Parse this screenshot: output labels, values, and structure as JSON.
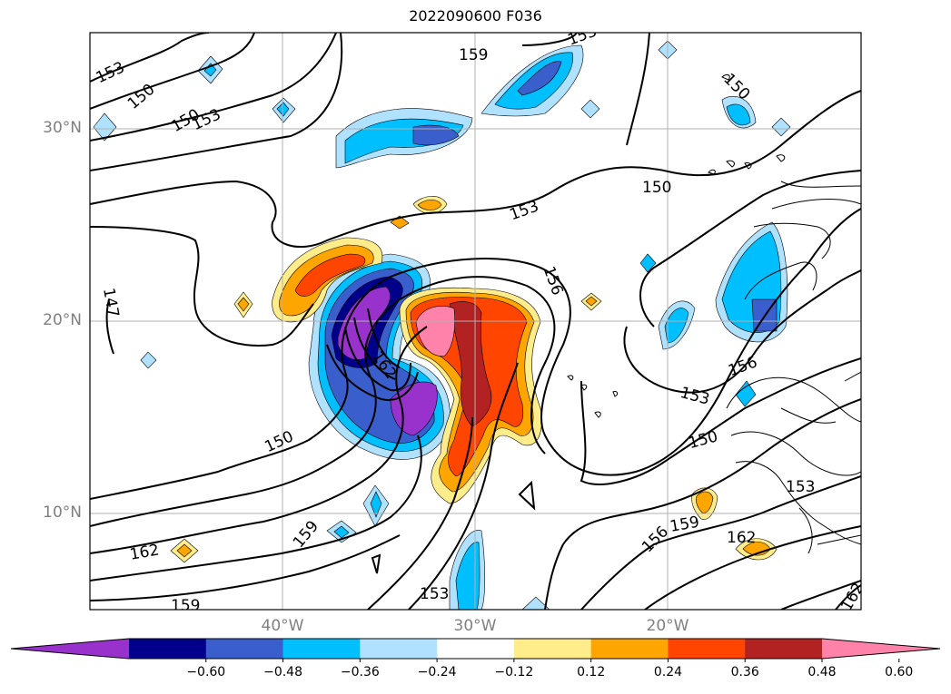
{
  "title": "2022090600 F036",
  "lat_labels": [
    "30°N",
    "20°N",
    "10°N"
  ],
  "lon_labels": [
    "40°W",
    "30°W",
    "20°W"
  ],
  "contour_labels": {
    "c1": "153",
    "c2": "150",
    "c3": "150",
    "c4": "153",
    "c5": "159",
    "c6": "153",
    "c7": "150",
    "c8": "150",
    "c9": "153",
    "c10": "147",
    "c11": "156",
    "c12": "162",
    "c13": "150",
    "c14": "159",
    "c15": "162",
    "c16": "159",
    "c17": "153",
    "c18": "156",
    "c19": "153",
    "c20": "156",
    "c21": "150",
    "c22": "153",
    "c23": "159",
    "c24": "156",
    "c25": "162",
    "c26": "162"
  },
  "colorbar": {
    "colors": [
      "#9932cc",
      "#00008b",
      "#3a5fcd",
      "#00bfff",
      "#b0e2ff",
      "#ffffff",
      "#ffec8b",
      "#ffa500",
      "#ff4500",
      "#b22222",
      "#ff82ab"
    ],
    "ticks": [
      "−0.60",
      "−0.48",
      "−0.36",
      "−0.24",
      "−0.12",
      "0.12",
      "0.24",
      "0.36",
      "0.48",
      "0.60"
    ]
  }
}
